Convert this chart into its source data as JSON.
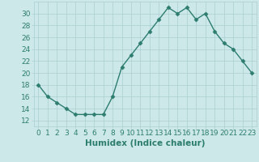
{
  "x": [
    0,
    1,
    2,
    3,
    4,
    5,
    6,
    7,
    8,
    9,
    10,
    11,
    12,
    13,
    14,
    15,
    16,
    17,
    18,
    19,
    20,
    21,
    22,
    23
  ],
  "y": [
    18,
    16,
    15,
    14,
    13,
    13,
    13,
    13,
    16,
    21,
    23,
    25,
    27,
    29,
    31,
    30,
    31,
    29,
    30,
    27,
    25,
    24,
    22,
    20
  ],
  "line_color": "#2d7d6e",
  "marker": "D",
  "marker_size": 2.5,
  "bg_color": "#cce8e8",
  "grid_color": "#aacfcf",
  "xlabel": "Humidex (Indice chaleur)",
  "ylim": [
    11,
    32
  ],
  "xlim": [
    -0.5,
    23.5
  ],
  "yticks": [
    12,
    14,
    16,
    18,
    20,
    22,
    24,
    26,
    28,
    30
  ],
  "xtick_labels": [
    "0",
    "1",
    "2",
    "3",
    "4",
    "5",
    "6",
    "7",
    "8",
    "9",
    "10",
    "11",
    "12",
    "13",
    "14",
    "15",
    "16",
    "17",
    "18",
    "19",
    "20",
    "21",
    "22",
    "23"
  ],
  "xlabel_fontsize": 7.5,
  "tick_fontsize": 6.5,
  "linewidth": 1.0
}
